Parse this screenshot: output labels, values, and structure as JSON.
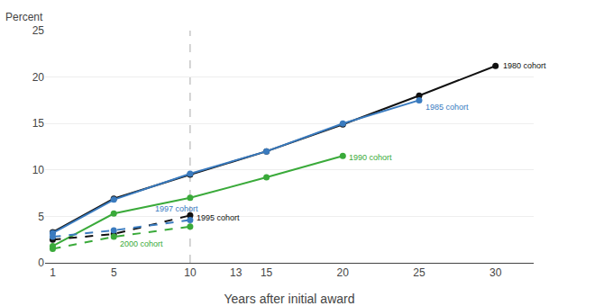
{
  "chart_data": {
    "type": "line",
    "xlabel": "Years after initial award",
    "ylabel": "Percent",
    "xlim": [
      0.5,
      32.5
    ],
    "ylim": [
      0,
      25
    ],
    "xticks": [
      1,
      5,
      10,
      13,
      15,
      20,
      25,
      30
    ],
    "yticks": [
      0,
      5,
      10,
      15,
      20,
      25
    ],
    "grid": "y",
    "series": [
      {
        "name": "1980 cohort",
        "color": "#111111",
        "line_style": "solid",
        "marker": "circle",
        "x": [
          1,
          5,
          10,
          15,
          20,
          25,
          30
        ],
        "values": [
          3.3,
          6.9,
          9.5,
          12.0,
          14.9,
          18.0,
          21.2
        ]
      },
      {
        "name": "1985 cohort",
        "color": "#3a7bbf",
        "line_style": "solid",
        "marker": "circle",
        "x": [
          1,
          5,
          10,
          15,
          20,
          25
        ],
        "values": [
          3.2,
          6.8,
          9.6,
          12.0,
          15.0,
          17.5
        ]
      },
      {
        "name": "1990 cohort",
        "color": "#3aaa3a",
        "line_style": "solid",
        "marker": "circle",
        "x": [
          1,
          5,
          10,
          15,
          20
        ],
        "values": [
          1.8,
          5.3,
          7.0,
          9.2,
          11.5
        ]
      },
      {
        "name": "1995 cohort",
        "color": "#111111",
        "line_style": "dashed",
        "marker": "circle",
        "x": [
          1,
          5,
          10
        ],
        "values": [
          2.5,
          3.1,
          5.1
        ]
      },
      {
        "name": "1997 cohort",
        "color": "#3a7bbf",
        "line_style": "dashed",
        "marker": "circle",
        "x": [
          1,
          5,
          10
        ],
        "values": [
          2.8,
          3.5,
          4.6
        ]
      },
      {
        "name": "2000 cohort",
        "color": "#3aaa3a",
        "line_style": "dashed",
        "marker": "circle",
        "x": [
          1,
          5,
          10
        ],
        "values": [
          1.5,
          2.8,
          3.9
        ]
      }
    ],
    "vlines": [
      {
        "x": 10,
        "color": "#aaaaaa",
        "line_style": "dashed"
      }
    ],
    "annotations": [
      {
        "text": "1980 cohort",
        "x": 30.4,
        "y": 21.2,
        "color": "#111111"
      },
      {
        "text": "1985 cohort",
        "x": 25.3,
        "y": 16.8,
        "color": "#3a7bbf"
      },
      {
        "text": "1990 cohort",
        "x": 20.3,
        "y": 11.3,
        "color": "#3aaa3a"
      },
      {
        "text": "1995 cohort",
        "x": 10.3,
        "y": 4.85,
        "color": "#111111"
      },
      {
        "text": "1997 cohort",
        "x": 7.6,
        "y": 5.85,
        "color": "#3a7bbf"
      },
      {
        "text": "2000 cohort",
        "x": 5.3,
        "y": 2.05,
        "color": "#3aaa3a"
      }
    ]
  }
}
